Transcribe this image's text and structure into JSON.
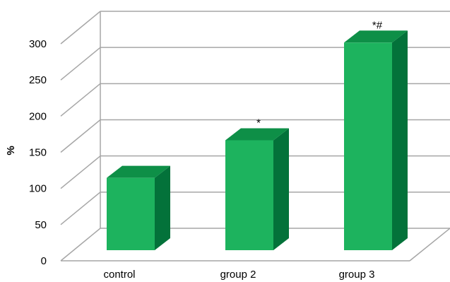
{
  "chart_data": {
    "type": "bar",
    "categories": [
      "control",
      "group 2",
      "group 3"
    ],
    "values": [
      100,
      152,
      287
    ],
    "annotations": [
      "",
      "*",
      "*#"
    ],
    "ylabel": "%",
    "xlabel": "",
    "ylim": [
      0,
      300
    ],
    "yticks": [
      0,
      50,
      100,
      150,
      200,
      250,
      300
    ],
    "grid": true,
    "legend": "none",
    "colors": {
      "front": "#1db35e",
      "side": "#03723a",
      "top": "#0e8f47",
      "grid": "#a6a6a6"
    }
  }
}
